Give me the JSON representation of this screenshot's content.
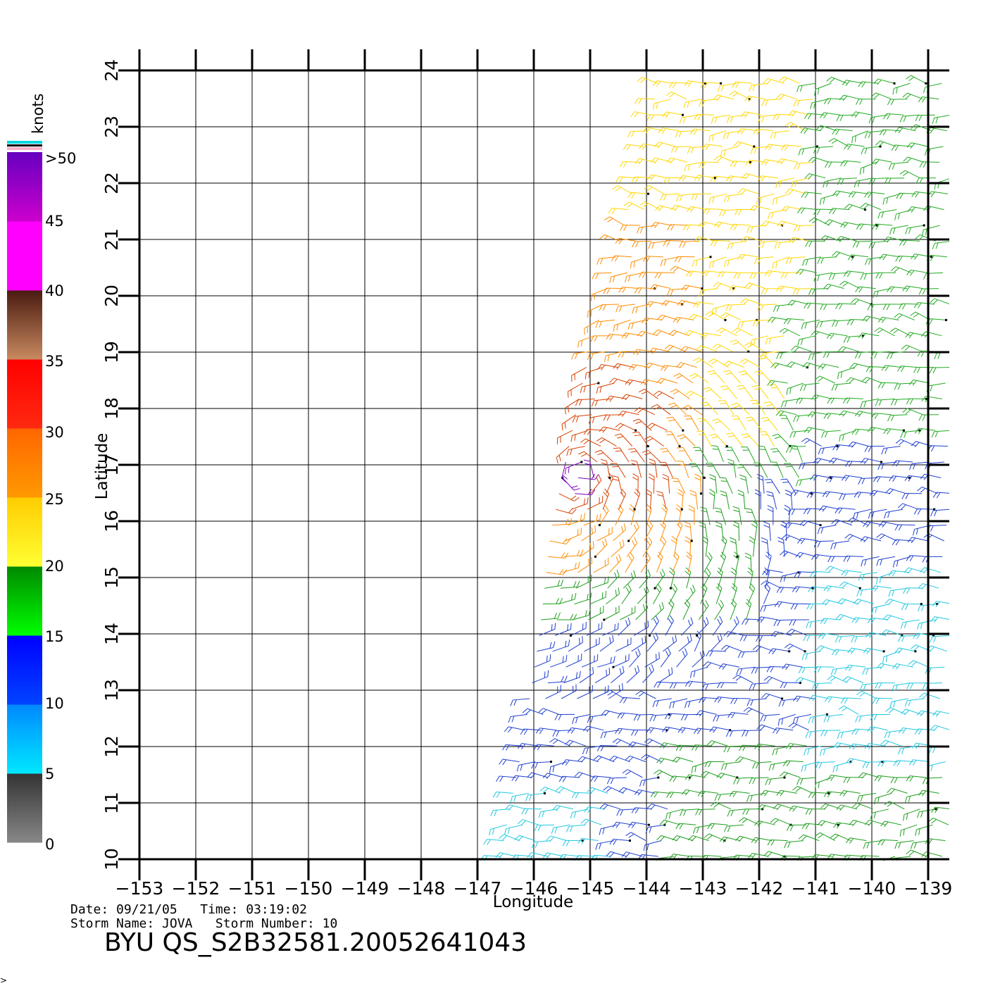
{
  "map": {
    "lon_ticks": [
      "−153",
      "−152",
      "−151",
      "−150",
      "−149",
      "−148",
      "−147",
      "−146",
      "−145",
      "−144",
      "−143",
      "−142",
      "−141",
      "−140",
      "−139"
    ],
    "lon_values": [
      -153,
      -152,
      -151,
      -150,
      -149,
      -148,
      -147,
      -146,
      -145,
      -144,
      -143,
      -142,
      -141,
      -140,
      -139
    ],
    "lat_ticks": [
      "10",
      "11",
      "12",
      "13",
      "14",
      "15",
      "16",
      "17",
      "18",
      "19",
      "20",
      "21",
      "22",
      "23",
      "24"
    ],
    "lat_values": [
      10,
      11,
      12,
      13,
      14,
      15,
      16,
      17,
      18,
      19,
      20,
      21,
      22,
      23,
      24
    ],
    "xlabel": "Longitude",
    "ylabel": "Latitude",
    "lon_range": [
      -153,
      -139
    ],
    "lat_range": [
      10,
      24
    ],
    "grid": true,
    "swath_west_edge": [
      [
        -146.6,
        10
      ],
      [
        -146.2,
        12
      ],
      [
        -145.9,
        14
      ],
      [
        -145.7,
        15.8
      ],
      [
        -145.4,
        17.2
      ],
      [
        -145.1,
        18.6
      ],
      [
        -144.7,
        20.1
      ],
      [
        -144.3,
        21.6
      ],
      [
        -143.8,
        23.7
      ]
    ],
    "wind_regions": [
      {
        "name": "north-yellow",
        "speed_knots": 22,
        "color": "#ffd700"
      },
      {
        "name": "northeast-green",
        "speed_knots": 17,
        "color": "#22aa22"
      },
      {
        "name": "storm-orange",
        "speed_knots": 27,
        "color": "#ff8c00"
      },
      {
        "name": "storm-red",
        "speed_knots": 33,
        "color": "#d94000"
      },
      {
        "name": "storm-core-purple",
        "speed_knots": 48,
        "color": "#8000c0"
      },
      {
        "name": "south-green",
        "speed_knots": 18,
        "color": "#1e9e1e"
      },
      {
        "name": "south-blue",
        "speed_knots": 13,
        "color": "#1f3fd0"
      },
      {
        "name": "east-cyan",
        "speed_knots": 7,
        "color": "#22c8e0"
      }
    ],
    "storm_center": {
      "lon": -145.2,
      "lat": 16.8
    }
  },
  "colorbar": {
    "title": "knots",
    "labels": [
      ">50",
      "45",
      "40",
      "35",
      "30",
      "25",
      "20",
      "15",
      "10",
      "5",
      "0"
    ],
    "stops": [
      {
        "from": 0,
        "to": 5,
        "top": "#333333",
        "bottom": "#888888"
      },
      {
        "from": 5,
        "to": 10,
        "top": "#0088ff",
        "bottom": "#00e8ff"
      },
      {
        "from": 10,
        "to": 15,
        "top": "#0000ff",
        "bottom": "#0044ff"
      },
      {
        "from": 15,
        "to": 20,
        "top": "#008800",
        "bottom": "#00ff00"
      },
      {
        "from": 20,
        "to": 25,
        "top": "#ffcc00",
        "bottom": "#ffff33"
      },
      {
        "from": 25,
        "to": 30,
        "top": "#ff6600",
        "bottom": "#ff9900"
      },
      {
        "from": 30,
        "to": 35,
        "top": "#ff0000",
        "bottom": "#ff2a10"
      },
      {
        "from": 35,
        "to": 40,
        "top": "#4a1a10",
        "bottom": "#c88a60"
      },
      {
        "from": 40,
        "to": 45,
        "top": "#ff00ff",
        "bottom": "#ff00ff"
      },
      {
        "from": 45,
        "to": 50,
        "top": "#6600c0",
        "bottom": "#cc00cc"
      }
    ]
  },
  "meta": {
    "date_line": "Date: 09/21/05   Time: 03:19:02",
    "storm_line": "Storm Name: JOVA   Storm Number: 10",
    "product_id": "BYU QS_S2B32581.20052641043"
  },
  "corner_glyph": ">"
}
